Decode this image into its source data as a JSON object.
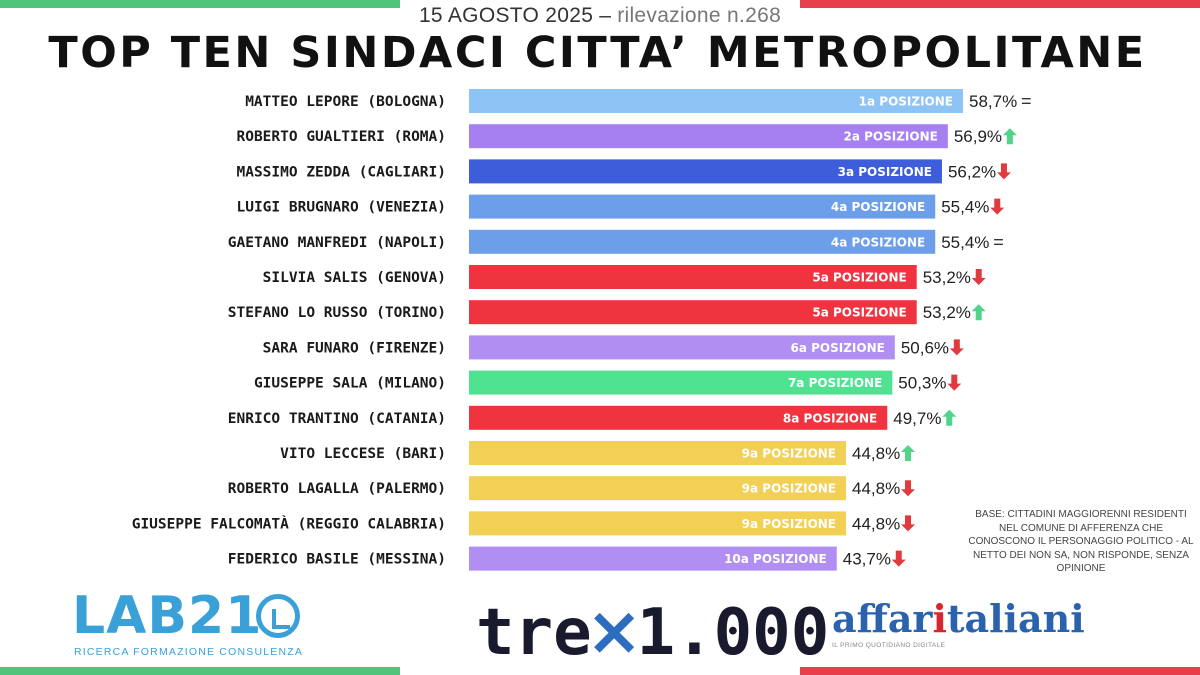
{
  "header": {
    "date": "15 AGOSTO 2025",
    "separator": "–",
    "survey": "rilevazione n.268",
    "title": "TOP TEN SINDACI CITTA’ METROPOLITANE"
  },
  "chart_data": {
    "type": "bar",
    "orientation": "horizontal",
    "categories": [
      "MATTEO LEPORE (BOLOGNA)",
      "ROBERTO GUALTIERI (ROMA)",
      "MASSIMO ZEDDA (CAGLIARI)",
      "LUIGI BRUGNARO (VENEZIA)",
      "GAETANO MANFREDI (NAPOLI)",
      "SILVIA SALIS (GENOVA)",
      "STEFANO LO RUSSO (TORINO)",
      "SARA FUNARO (FIRENZE)",
      "GIUSEPPE SALA (MILANO)",
      "ENRICO TRANTINO (CATANIA)",
      "VITO LECCESE (BARI)",
      "ROBERTO LAGALLA (PALERMO)",
      "GIUSEPPE FALCOMATÀ (REGGIO CALABRIA)",
      "FEDERICO BASILE (MESSINA)"
    ],
    "values": [
      58.7,
      56.9,
      56.2,
      55.4,
      55.4,
      53.2,
      53.2,
      50.6,
      50.3,
      49.7,
      44.8,
      44.8,
      44.8,
      43.7
    ],
    "value_labels": [
      "58,7%",
      "56,9%",
      "56,2%",
      "55,4%",
      "55,4%",
      "53,2%",
      "53,2%",
      "50,6%",
      "50,3%",
      "49,7%",
      "44,8%",
      "44,8%",
      "44,8%",
      "43,7%"
    ],
    "positions": [
      "1a POSIZIONE",
      "2a POSIZIONE",
      "3a POSIZIONE",
      "4a POSIZIONE",
      "4a POSIZIONE",
      "5a POSIZIONE",
      "5a POSIZIONE",
      "6a POSIZIONE",
      "7a POSIZIONE",
      "8a POSIZIONE",
      "9a POSIZIONE",
      "9a POSIZIONE",
      "9a POSIZIONE",
      "10a POSIZIONE"
    ],
    "trends": [
      "equal",
      "up",
      "down",
      "down",
      "equal",
      "down",
      "up",
      "down",
      "down",
      "up",
      "up",
      "down",
      "down",
      "down"
    ],
    "colors": [
      "#8ec4f5",
      "#a67ff0",
      "#3d5ed8",
      "#6d9eea",
      "#6d9eea",
      "#ef3440",
      "#ef3440",
      "#b08ef2",
      "#4fe391",
      "#ef3440",
      "#f2cf55",
      "#f2cf55",
      "#f2cf55",
      "#b08ef2"
    ],
    "trend_colors": {
      "up": "#4fd48a",
      "down": "#e03a3f"
    },
    "equal_symbol": "=",
    "xlim": [
      0,
      60
    ],
    "grid": false,
    "legend": "none"
  },
  "note": {
    "text": "BASE: CITTADINI MAGGIORENNI RESIDENTI NEL COMUNE DI AFFERENZA CHE CONOSCONO IL PERSONAGGIO POLITICO - AL NETTO DEI NON SA, NON RISPONDE, SENZA OPINIONE"
  },
  "logos": {
    "lab21": "LAB21",
    "lab21_tagline": "RICERCA FORMAZIONE CONSULENZA",
    "lab21_icon": "chart-ring-icon",
    "tre_left": "tre",
    "tre_x": "×",
    "tre_right": "1.000",
    "affari_before": "affar",
    "affari_i": "i",
    "affari_after": "taliani",
    "affari_tagline": "IL PRIMO QUOTIDIANO DIGITALE"
  }
}
